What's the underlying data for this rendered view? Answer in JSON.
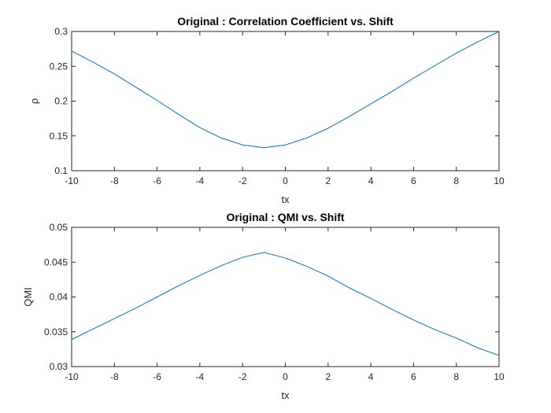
{
  "chart_data": [
    {
      "type": "line",
      "title": "Original : Correlation Coefficient vs. Shift",
      "xlabel": "tx",
      "ylabel": "ρ",
      "xlim": [
        -10,
        10
      ],
      "ylim": [
        0.1,
        0.3
      ],
      "xticks": [
        -10,
        -8,
        -6,
        -4,
        -2,
        0,
        2,
        4,
        6,
        8,
        10
      ],
      "yticks": [
        0.1,
        0.15,
        0.2,
        0.25,
        0.3
      ],
      "xtick_labels": [
        "-10",
        "-8",
        "-6",
        "-4",
        "-2",
        "0",
        "2",
        "4",
        "6",
        "8",
        "10"
      ],
      "ytick_labels": [
        "0.1",
        "0.15",
        "0.2",
        "0.25",
        "0.3"
      ],
      "grid": false,
      "color": "#0072BD",
      "x": [
        -10,
        -9,
        -8,
        -7,
        -6,
        -5,
        -4,
        -3,
        -2,
        -1,
        0,
        1,
        2,
        3,
        4,
        5,
        6,
        7,
        8,
        9,
        10
      ],
      "y": [
        0.272,
        0.256,
        0.239,
        0.22,
        0.201,
        0.181,
        0.162,
        0.147,
        0.137,
        0.133,
        0.137,
        0.147,
        0.161,
        0.178,
        0.196,
        0.214,
        0.233,
        0.251,
        0.269,
        0.285,
        0.3
      ]
    },
    {
      "type": "line",
      "title": "Original : QMI vs. Shift",
      "xlabel": "tx",
      "ylabel": "QMI",
      "xlim": [
        -10,
        10
      ],
      "ylim": [
        0.03,
        0.05
      ],
      "xticks": [
        -10,
        -8,
        -6,
        -4,
        -2,
        0,
        2,
        4,
        6,
        8,
        10
      ],
      "yticks": [
        0.03,
        0.035,
        0.04,
        0.045,
        0.05
      ],
      "xtick_labels": [
        "-10",
        "-8",
        "-6",
        "-4",
        "-2",
        "0",
        "2",
        "4",
        "6",
        "8",
        "10"
      ],
      "ytick_labels": [
        "0.03",
        "0.035",
        "0.04",
        "0.045",
        "0.05"
      ],
      "grid": false,
      "color": "#0072BD",
      "x": [
        -10,
        -9,
        -8,
        -7,
        -6,
        -5,
        -4,
        -3,
        -2,
        -1,
        0,
        1,
        2,
        3,
        4,
        5,
        6,
        7,
        8,
        9,
        10
      ],
      "y": [
        0.0339,
        0.0354,
        0.0369,
        0.0384,
        0.04,
        0.0416,
        0.0431,
        0.0445,
        0.0457,
        0.0464,
        0.0456,
        0.0444,
        0.043,
        0.0413,
        0.0398,
        0.0382,
        0.0367,
        0.0353,
        0.0341,
        0.0327,
        0.0316
      ]
    }
  ]
}
